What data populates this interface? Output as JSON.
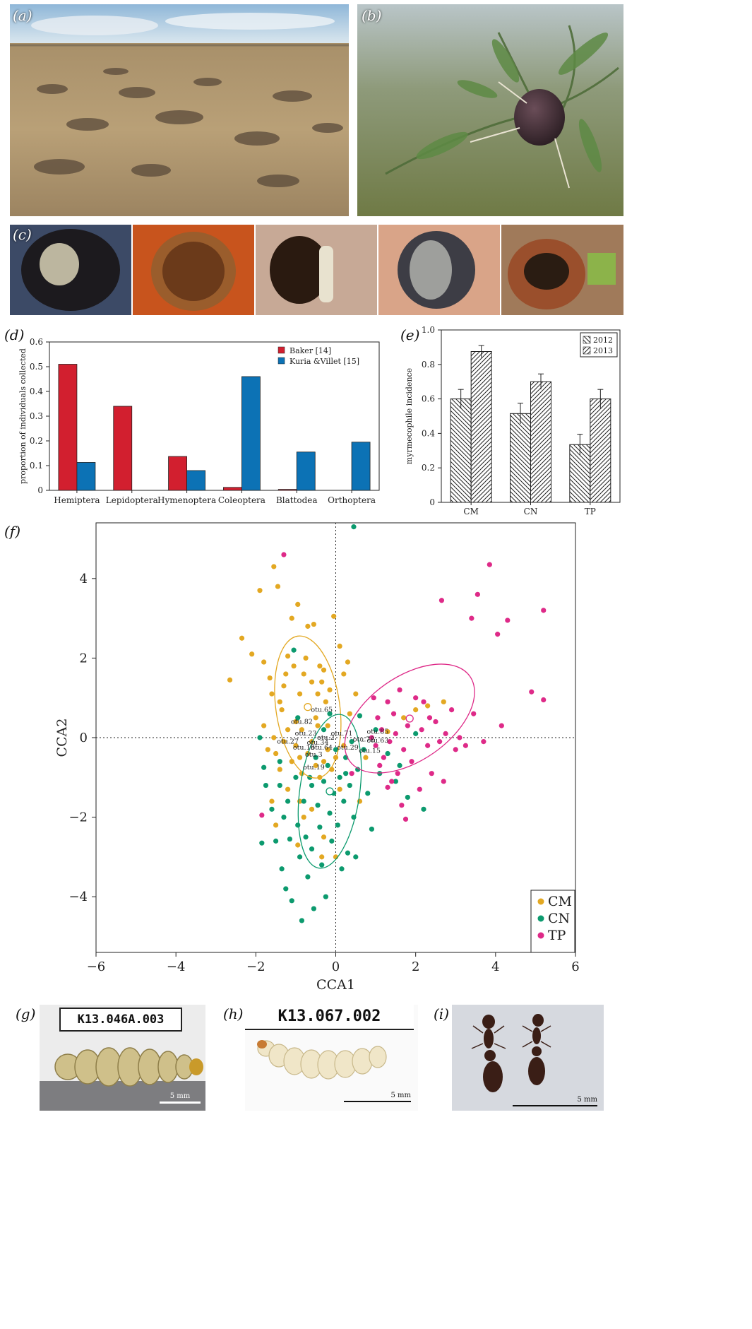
{
  "panel_labels": {
    "a": "(a)",
    "b": "(b)",
    "c": "(c)",
    "d": "(d)",
    "e": "(e)",
    "f": "(f)",
    "g": "(g)",
    "h": "(h)",
    "i": "(i)"
  },
  "specimen_tags": {
    "g": "K13.046A.003",
    "h": "K13.067.002"
  },
  "scale_bars": {
    "g": "5 mm",
    "h": "5 mm",
    "i": "5 mm"
  },
  "chart_data": [
    {
      "id": "d",
      "type": "bar",
      "ylabel": "proportion of individuals collected",
      "categories": [
        "Hemiptera",
        "Lepidoptera",
        "Hymenoptera",
        "Coleoptera",
        "Blattodea",
        "Orthoptera"
      ],
      "ylim": [
        0,
        0.6
      ],
      "yticks": [
        "0",
        "0.1",
        "0.2",
        "0.3",
        "0.4",
        "0.5",
        "0.6"
      ],
      "legend_position": "top-right",
      "series": [
        {
          "name": "Baker [14]",
          "color": "#d21f2f",
          "values": [
            0.51,
            0.34,
            0.137,
            0.012,
            0.004,
            0
          ]
        },
        {
          "name": "Kuria &Villet [15]",
          "color": "#0c72b5",
          "values": [
            0.113,
            0,
            0.08,
            0.46,
            0.155,
            0.195
          ]
        }
      ]
    },
    {
      "id": "e",
      "type": "bar",
      "ylabel": "myrmecophile incidence",
      "categories": [
        "CM",
        "CN",
        "TP"
      ],
      "ylim": [
        0,
        1
      ],
      "yticks": [
        "0",
        "0.2",
        "0.4",
        "0.6",
        "0.8",
        "1.0"
      ],
      "legend_position": "top-right",
      "series": [
        {
          "name": "2012",
          "pattern": "backslash",
          "values": [
            0.6,
            0.515,
            0.335
          ],
          "errors": [
            0.055,
            0.06,
            0.06
          ]
        },
        {
          "name": "2013",
          "pattern": "slash",
          "values": [
            0.875,
            0.7,
            0.6
          ],
          "errors": [
            0.035,
            0.045,
            0.055
          ]
        }
      ]
    },
    {
      "id": "f",
      "type": "scatter",
      "xlabel": "CCA1",
      "ylabel": "CCA2",
      "xlim": [
        -6,
        6
      ],
      "ylim": [
        -5.4,
        5.4
      ],
      "xticks": [
        "−6",
        "−4",
        "−2",
        "0",
        "2",
        "4",
        "6"
      ],
      "yticks": [
        "−4",
        "−2",
        "0",
        "2",
        "4"
      ],
      "legend_position": "bottom-right",
      "series": [
        {
          "name": "CM",
          "color": "#e3a822",
          "centroid": [
            -0.7,
            0.77
          ],
          "ellipse": {
            "rx": 0.8,
            "ry": 1.8,
            "angle": -8
          },
          "points": [
            [
              -2.65,
              1.45
            ],
            [
              -2.35,
              2.5
            ],
            [
              -2.1,
              2.1
            ],
            [
              -1.9,
              3.7
            ],
            [
              -1.8,
              1.9
            ],
            [
              -1.65,
              1.5
            ],
            [
              -1.55,
              4.3
            ],
            [
              -1.45,
              3.8
            ],
            [
              -1.6,
              1.1
            ],
            [
              -1.4,
              0.9
            ],
            [
              -1.35,
              0.7
            ],
            [
              -1.3,
              1.3
            ],
            [
              -1.25,
              1.6
            ],
            [
              -1.2,
              2.05
            ],
            [
              -1.1,
              3.0
            ],
            [
              -1.05,
              1.8
            ],
            [
              -1.0,
              0.4
            ],
            [
              -0.95,
              3.35
            ],
            [
              -0.9,
              1.1
            ],
            [
              -0.85,
              0.2
            ],
            [
              -0.8,
              1.6
            ],
            [
              -0.75,
              2.0
            ],
            [
              -0.7,
              2.8
            ],
            [
              -0.6,
              1.4
            ],
            [
              -0.55,
              2.85
            ],
            [
              -0.5,
              0.5
            ],
            [
              -0.45,
              1.1
            ],
            [
              -0.4,
              1.8
            ],
            [
              -0.35,
              1.4
            ],
            [
              -0.3,
              1.7
            ],
            [
              -0.25,
              0.9
            ],
            [
              -0.2,
              0.3
            ],
            [
              -0.15,
              1.2
            ],
            [
              -0.05,
              3.05
            ],
            [
              0.1,
              2.3
            ],
            [
              0.2,
              1.6
            ],
            [
              0.3,
              1.9
            ],
            [
              0.5,
              1.1
            ],
            [
              -1.8,
              0.3
            ],
            [
              -1.7,
              -0.3
            ],
            [
              -1.5,
              -0.4
            ],
            [
              -1.4,
              -0.8
            ],
            [
              -1.3,
              -0.1
            ],
            [
              -1.2,
              0.2
            ],
            [
              -1.1,
              -0.6
            ],
            [
              -1.0,
              -0.2
            ],
            [
              -0.9,
              -0.5
            ],
            [
              -0.85,
              -0.9
            ],
            [
              -0.7,
              -0.4
            ],
            [
              -0.6,
              -0.1
            ],
            [
              -0.5,
              -0.7
            ],
            [
              -0.4,
              -1.0
            ],
            [
              -0.3,
              -0.6
            ],
            [
              -0.2,
              -0.3
            ],
            [
              -0.1,
              -0.8
            ],
            [
              0.0,
              -0.5
            ],
            [
              0.1,
              -1.3
            ],
            [
              -0.9,
              -1.6
            ],
            [
              -0.8,
              -2.0
            ],
            [
              -1.2,
              -1.3
            ],
            [
              -1.6,
              -1.6
            ],
            [
              -1.5,
              -2.2
            ],
            [
              -0.3,
              -2.5
            ],
            [
              0.0,
              -3.0
            ],
            [
              -0.35,
              -3.0
            ],
            [
              0.6,
              -1.6
            ],
            [
              1.7,
              0.5
            ],
            [
              2.0,
              0.7
            ],
            [
              2.3,
              0.8
            ],
            [
              2.7,
              0.9
            ],
            [
              1.3,
              0.15
            ],
            [
              -0.6,
              -1.8
            ],
            [
              -0.95,
              -2.7
            ],
            [
              0.2,
              -0.2
            ],
            [
              -1.55,
              0.0
            ],
            [
              -0.45,
              0.3
            ],
            [
              0.35,
              0.6
            ],
            [
              0.75,
              -0.5
            ]
          ]
        },
        {
          "name": "CN",
          "color": "#0c9a6e",
          "centroid": [
            -0.15,
            -1.35
          ],
          "ellipse": {
            "rx": 0.75,
            "ry": 1.95,
            "angle": 8
          },
          "points": [
            [
              0.45,
              5.3
            ],
            [
              -1.05,
              2.2
            ],
            [
              -1.9,
              0.0
            ],
            [
              -1.8,
              -0.75
            ],
            [
              -1.75,
              -1.2
            ],
            [
              -1.85,
              -2.65
            ],
            [
              -1.6,
              -1.8
            ],
            [
              -1.5,
              -2.6
            ],
            [
              -1.4,
              -1.2
            ],
            [
              -1.35,
              -3.3
            ],
            [
              -1.3,
              -2.0
            ],
            [
              -1.25,
              -3.8
            ],
            [
              -1.2,
              -1.6
            ],
            [
              -1.15,
              -2.55
            ],
            [
              -1.1,
              -4.1
            ],
            [
              -1.0,
              -1.0
            ],
            [
              -0.95,
              -2.2
            ],
            [
              -0.9,
              -3.0
            ],
            [
              -0.85,
              -4.6
            ],
            [
              -0.8,
              -1.6
            ],
            [
              -0.75,
              -2.5
            ],
            [
              -0.7,
              -3.5
            ],
            [
              -0.65,
              -1.0
            ],
            [
              -0.6,
              -2.8
            ],
            [
              -0.55,
              -4.3
            ],
            [
              -0.5,
              -0.5
            ],
            [
              -0.45,
              -1.7
            ],
            [
              -0.4,
              -2.25
            ],
            [
              -0.35,
              -3.2
            ],
            [
              -0.3,
              -1.1
            ],
            [
              -0.25,
              -4.0
            ],
            [
              -0.2,
              -0.7
            ],
            [
              -0.15,
              -1.9
            ],
            [
              -0.1,
              -2.6
            ],
            [
              -0.05,
              -1.4
            ],
            [
              0.0,
              -0.3
            ],
            [
              0.05,
              -2.2
            ],
            [
              0.1,
              -1.0
            ],
            [
              0.15,
              -3.3
            ],
            [
              0.2,
              -1.6
            ],
            [
              0.25,
              -0.5
            ],
            [
              0.3,
              -2.9
            ],
            [
              0.35,
              -1.2
            ],
            [
              0.4,
              -0.1
            ],
            [
              0.45,
              -2.0
            ],
            [
              0.5,
              -3.0
            ],
            [
              0.55,
              -0.8
            ],
            [
              0.6,
              0.55
            ],
            [
              0.7,
              -0.3
            ],
            [
              0.8,
              -1.4
            ],
            [
              0.9,
              -2.3
            ],
            [
              1.0,
              0.2
            ],
            [
              1.1,
              -0.9
            ],
            [
              1.3,
              -0.4
            ],
            [
              1.5,
              -1.1
            ],
            [
              1.6,
              -0.7
            ],
            [
              1.8,
              -1.5
            ],
            [
              2.0,
              0.1
            ],
            [
              2.2,
              -1.8
            ],
            [
              -0.3,
              0.2
            ],
            [
              -0.15,
              0.6
            ],
            [
              -1.4,
              -0.6
            ],
            [
              -0.6,
              -1.2
            ],
            [
              0.25,
              -0.9
            ],
            [
              -0.95,
              0.5
            ]
          ]
        },
        {
          "name": "TP",
          "color": "#de2a88",
          "centroid": [
            1.85,
            0.48
          ],
          "ellipse": {
            "rx": 1.05,
            "ry": 1.85,
            "angle": 55
          },
          "points": [
            [
              -1.3,
              4.6
            ],
            [
              -1.85,
              -1.95
            ],
            [
              0.9,
              0.0
            ],
            [
              1.0,
              -0.2
            ],
            [
              1.05,
              0.5
            ],
            [
              1.1,
              -0.7
            ],
            [
              1.15,
              0.2
            ],
            [
              1.2,
              -0.5
            ],
            [
              1.3,
              0.9
            ],
            [
              1.35,
              -0.1
            ],
            [
              1.4,
              -1.1
            ],
            [
              1.45,
              0.6
            ],
            [
              1.5,
              0.1
            ],
            [
              1.55,
              -0.9
            ],
            [
              1.6,
              1.2
            ],
            [
              1.7,
              -0.3
            ],
            [
              1.8,
              0.3
            ],
            [
              1.9,
              -0.6
            ],
            [
              2.0,
              1.0
            ],
            [
              2.1,
              -1.3
            ],
            [
              2.15,
              0.2
            ],
            [
              2.2,
              0.9
            ],
            [
              2.3,
              -0.2
            ],
            [
              2.35,
              0.5
            ],
            [
              2.4,
              -0.9
            ],
            [
              2.5,
              0.4
            ],
            [
              2.6,
              -0.1
            ],
            [
              2.7,
              -1.1
            ],
            [
              2.75,
              0.1
            ],
            [
              2.9,
              0.7
            ],
            [
              3.0,
              -0.3
            ],
            [
              3.1,
              0.0
            ],
            [
              3.25,
              -0.2
            ],
            [
              3.4,
              3.0
            ],
            [
              3.45,
              0.6
            ],
            [
              3.55,
              3.6
            ],
            [
              3.7,
              -0.1
            ],
            [
              3.85,
              4.35
            ],
            [
              4.05,
              2.6
            ],
            [
              4.15,
              0.3
            ],
            [
              4.3,
              2.95
            ],
            [
              4.9,
              1.15
            ],
            [
              5.2,
              3.2
            ],
            [
              5.2,
              0.95
            ],
            [
              2.65,
              3.45
            ],
            [
              1.75,
              -2.05
            ],
            [
              1.65,
              -1.7
            ],
            [
              0.4,
              -0.9
            ],
            [
              0.95,
              1.0
            ],
            [
              1.3,
              -1.25
            ]
          ]
        }
      ],
      "labels": [
        {
          "text": "otu.65",
          "x": -0.35,
          "y": 0.65
        },
        {
          "text": "otu.82",
          "x": -0.85,
          "y": 0.35
        },
        {
          "text": "otu.23",
          "x": -0.75,
          "y": 0.05
        },
        {
          "text": "otu.2",
          "x": -0.25,
          "y": -0.05
        },
        {
          "text": "otu.71",
          "x": 0.15,
          "y": 0.05
        },
        {
          "text": "otu.85",
          "x": 1.05,
          "y": 0.1
        },
        {
          "text": "otu.27",
          "x": -1.2,
          "y": -0.15
        },
        {
          "text": "otu.34",
          "x": -0.45,
          "y": -0.18
        },
        {
          "text": "otu.72",
          "x": 0.7,
          "y": -0.1
        },
        {
          "text": "otu.63",
          "x": 1.05,
          "y": -0.12
        },
        {
          "text": "otu.19",
          "x": -0.8,
          "y": -0.3
        },
        {
          "text": "otu.64",
          "x": -0.35,
          "y": -0.3
        },
        {
          "text": "otu.29",
          "x": 0.3,
          "y": -0.3
        },
        {
          "text": "otu.15",
          "x": 0.85,
          "y": -0.38
        },
        {
          "text": "otu.3",
          "x": -0.55,
          "y": -0.48
        },
        {
          "text": "otu.19",
          "x": -0.55,
          "y": -0.8
        }
      ]
    }
  ]
}
